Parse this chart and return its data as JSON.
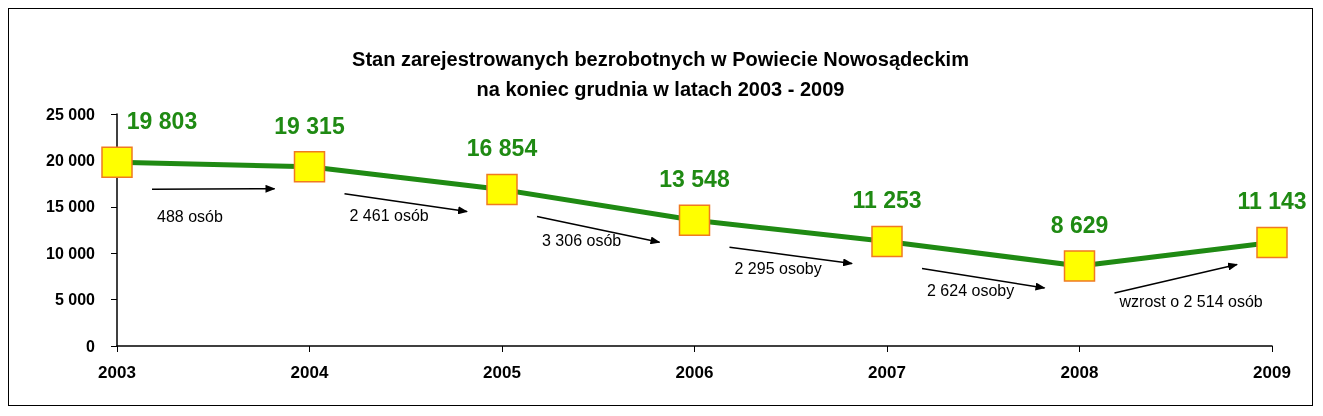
{
  "chart_data": {
    "type": "line",
    "title": "Stan zarejestrowanych bezrobotnych w Powiecie Nowosądeckim\nna koniec grudnia w latach 2003 - 2009",
    "categories": [
      "2003",
      "2004",
      "2005",
      "2006",
      "2007",
      "2008",
      "2009"
    ],
    "series": [
      {
        "color": "#1f8a13",
        "values": [
          19803,
          19315,
          16854,
          13548,
          11253,
          8629,
          11143
        ],
        "value_labels": [
          "19 803",
          "19 315",
          "16 854",
          "13 548",
          "11 253",
          "8 629",
          "11 143"
        ]
      }
    ],
    "ylim": [
      0,
      25000
    ],
    "yticks": [
      0,
      {
        "value": 5000,
        "label": "5 000"
      },
      {
        "value": 10000,
        "label": "10 000"
      },
      {
        "value": 15000,
        "label": "15 000"
      },
      {
        "value": 20000,
        "label": "20 000"
      },
      {
        "value": 25000,
        "label": "25 000"
      }
    ],
    "grid": false,
    "marker": "square",
    "line_style": "solid",
    "annotations": [
      "488 osób",
      "2 461 osób",
      "3 306 osób",
      "2 295 osoby",
      "2 624 osoby",
      "wzrost o 2 514 osób"
    ]
  }
}
